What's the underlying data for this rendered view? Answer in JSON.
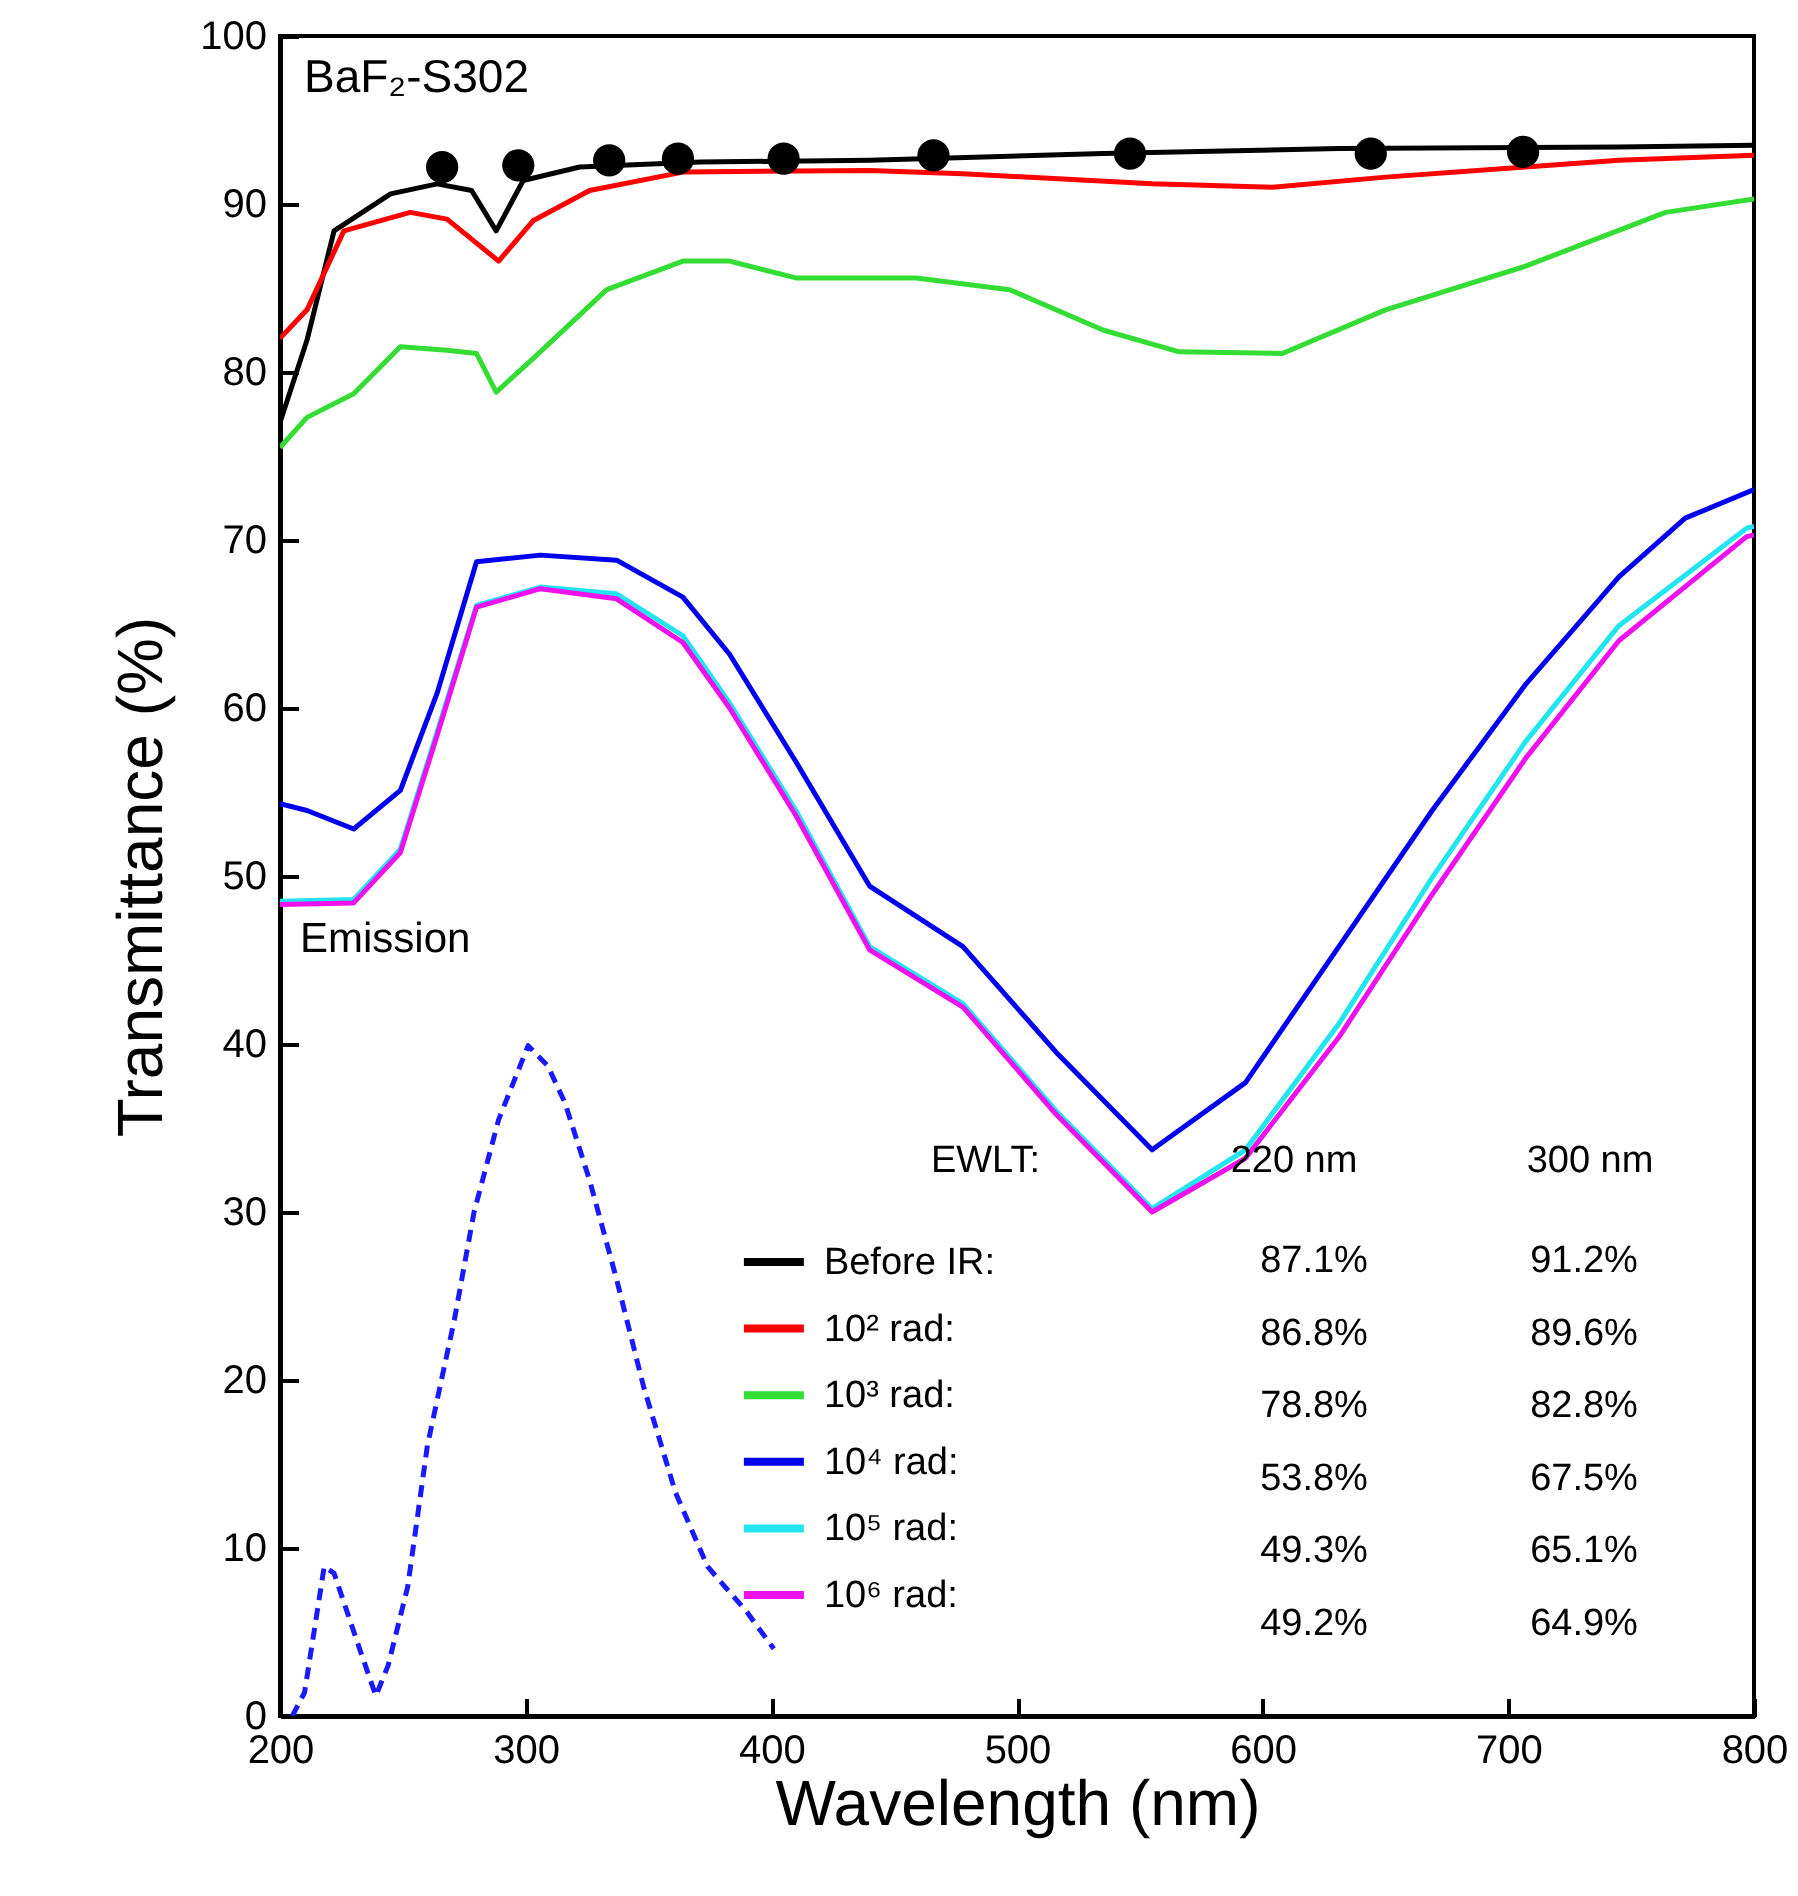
{
  "chart_data": {
    "type": "line",
    "title": "BaF₂-S302",
    "xlabel": "Wavelength (nm)",
    "ylabel": "Transmittance (%)",
    "xlim": [
      200,
      800
    ],
    "ylim": [
      0,
      100
    ],
    "xticks": [
      200,
      300,
      400,
      500,
      600,
      700,
      800
    ],
    "yticks": [
      0,
      10,
      20,
      30,
      40,
      50,
      60,
      70,
      80,
      90,
      100
    ],
    "legend": "bottom",
    "annotations": [
      "EWLT:",
      "220 nm",
      "300 nm",
      "87.1%",
      "91.2%",
      "86.8%",
      "89.6%",
      "78.8%",
      "82.8%",
      "53.8%",
      "67.5%",
      "49.3%",
      "65.1%",
      "49.2%",
      "64.9%",
      "Emission"
    ],
    "series": [
      {
        "name": "Before IR:",
        "color": "#000000",
        "x": [
          200,
          211,
          222,
          245,
          264,
          278,
          288,
          299,
          322,
          371,
          440,
          535,
          631,
          745,
          800
        ],
        "values": [
          77,
          81.9,
          88.4,
          90.6,
          91.2,
          90.8,
          88.4,
          91.4,
          92.2,
          92.5,
          92.6,
          93,
          93.3,
          93.4,
          93.5
        ]
      },
      {
        "name": "10² rad:",
        "color": "#ff0000",
        "x": [
          200,
          211,
          226,
          253,
          268,
          289,
          303,
          326,
          364,
          440,
          478,
          555,
          604,
          650,
          707,
          745,
          800
        ],
        "values": [
          82,
          83.7,
          88.4,
          89.5,
          89.1,
          86.6,
          89,
          90.8,
          91.9,
          92,
          91.8,
          91.2,
          91,
          91.6,
          92.2,
          92.6,
          92.9
        ]
      },
      {
        "name": "10³ rad:",
        "color": "#33dd33",
        "x": [
          200,
          211,
          230,
          249,
          268,
          280,
          288,
          303,
          333,
          364,
          383,
          410,
          459,
          497,
          535,
          566,
          608,
          650,
          707,
          764,
          800
        ],
        "values": [
          75.5,
          77.3,
          78.7,
          81.5,
          81.3,
          81.1,
          78.8,
          80.8,
          84.9,
          86.6,
          86.6,
          85.6,
          85.6,
          84.9,
          82.5,
          81.2,
          81.1,
          83.7,
          86.3,
          89.5,
          90.3
        ]
      },
      {
        "name": "10⁴ rad:",
        "color": "#0000ee",
        "x": [
          200,
          211,
          230,
          249,
          264,
          280,
          306,
          337,
          364,
          383,
          410,
          440,
          478,
          516,
          555,
          593,
          631,
          669,
          707,
          745,
          772,
          800
        ],
        "values": [
          54.3,
          53.9,
          52.8,
          55.1,
          60.9,
          68.7,
          69.1,
          68.8,
          66.6,
          63.2,
          56.8,
          49.4,
          45.8,
          39.5,
          33.7,
          37.7,
          45.8,
          53.9,
          61.4,
          67.8,
          71.3,
          73
        ]
      },
      {
        "name": "10⁵ rad:",
        "color": "#22e5f0",
        "x": [
          200,
          230,
          249,
          264,
          280,
          306,
          337,
          364,
          383,
          410,
          440,
          478,
          516,
          555,
          593,
          631,
          669,
          707,
          745,
          797,
          800
        ],
        "values": [
          48.5,
          48.6,
          51.6,
          58.6,
          66.1,
          67.2,
          66.8,
          64.3,
          60.3,
          53.9,
          45.8,
          42.4,
          36,
          30.2,
          33.7,
          41.2,
          49.9,
          58,
          64.9,
          70.7,
          70.8
        ]
      },
      {
        "name": "10⁶ rad:",
        "color": "#ee11ee",
        "x": [
          200,
          230,
          249,
          264,
          280,
          306,
          337,
          364,
          383,
          410,
          440,
          478,
          516,
          555,
          593,
          631,
          669,
          707,
          745,
          797,
          800
        ],
        "values": [
          48.3,
          48.4,
          51.4,
          58.4,
          66,
          67.1,
          66.5,
          63.9,
          60,
          53.6,
          45.6,
          42.2,
          35.8,
          30,
          33.2,
          40.4,
          48.9,
          57,
          64,
          70.2,
          70.3
        ]
      },
      {
        "type": "scatter",
        "marker": "circle",
        "color": "#000000",
        "x": [
          266,
          297,
          334,
          362,
          405,
          466,
          546,
          644,
          706
        ],
        "values": [
          92.2,
          92.3,
          92.6,
          92.7,
          92.7,
          92.9,
          93,
          93,
          93.1
        ]
      },
      {
        "line_style": "dashed",
        "color": "#1a1aff",
        "x": [
          205,
          210,
          218,
          222,
          231,
          239,
          244,
          252,
          260,
          271,
          279,
          289,
          301,
          309,
          316,
          326,
          337,
          348,
          361,
          374,
          390,
          401
        ],
        "values": [
          0,
          1.4,
          8.9,
          8.5,
          4.6,
          1.2,
          3,
          7.7,
          16.1,
          23.6,
          30,
          35.5,
          39.9,
          38.7,
          36.5,
          31.9,
          26,
          19.6,
          13.3,
          8.9,
          6.2,
          4
        ]
      }
    ]
  }
}
